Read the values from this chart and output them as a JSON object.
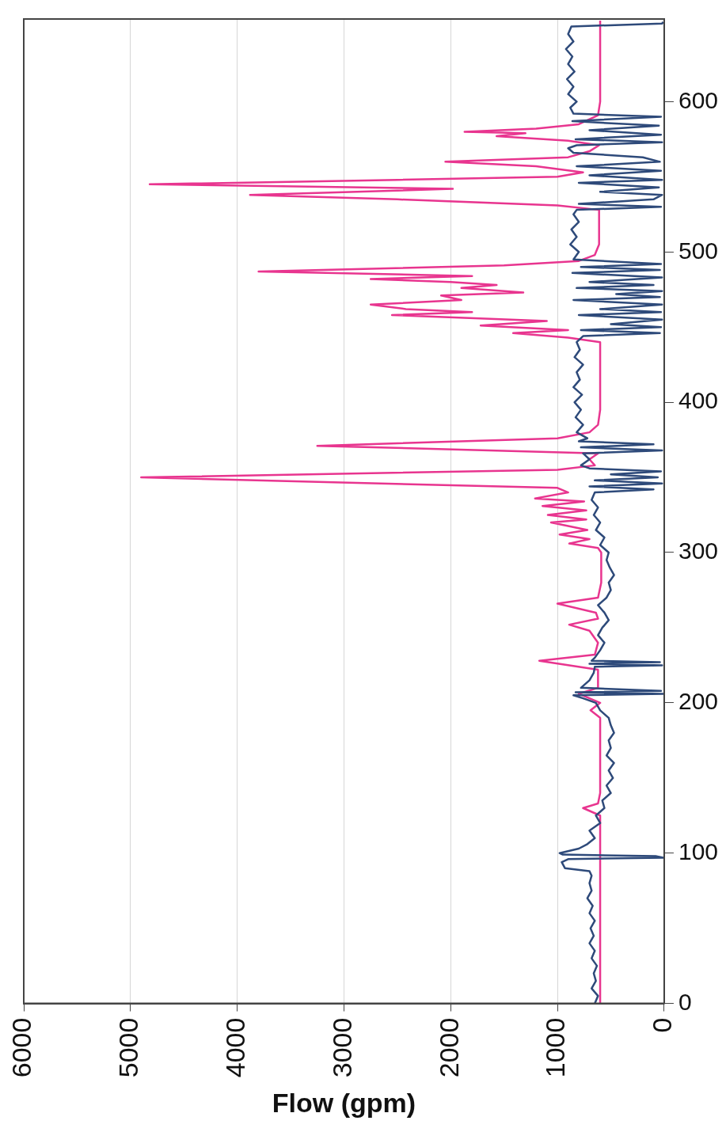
{
  "chart_data": {
    "type": "line",
    "xlabel": "Flow (gpm)",
    "xlim": [
      6000,
      0
    ],
    "xticks": [
      6000,
      5000,
      4000,
      3000,
      2000,
      1000,
      0
    ],
    "ylim": [
      0,
      655
    ],
    "yticks": [
      0,
      100,
      200,
      300,
      400,
      500,
      600
    ],
    "grid": "x",
    "series": [
      {
        "color": "#2e4a7a",
        "values": [
          0,
          5,
          10,
          15,
          20,
          25,
          30,
          35,
          40,
          45,
          50,
          55,
          60,
          65,
          70,
          75,
          80,
          85,
          88,
          90,
          94,
          96,
          97,
          98,
          99,
          100,
          103,
          106,
          110,
          115,
          120,
          125,
          130,
          135,
          140,
          145,
          150,
          155,
          160,
          165,
          170,
          175,
          180,
          185,
          190,
          195,
          200,
          203,
          205,
          206,
          207,
          208,
          210,
          215,
          220,
          224,
          225,
          226,
          227,
          228,
          230,
          235,
          240,
          245,
          250,
          255,
          260,
          265,
          270,
          275,
          280,
          285,
          290,
          295,
          300,
          305,
          310,
          315,
          320,
          325,
          330,
          335,
          340,
          342,
          344,
          346,
          348,
          350,
          352,
          354,
          356,
          358,
          362,
          366,
          368,
          370,
          372,
          374,
          376,
          380,
          385,
          390,
          395,
          400,
          405,
          410,
          415,
          420,
          425,
          430,
          435,
          440,
          444,
          446,
          448,
          450,
          452,
          455,
          458,
          460,
          462,
          465,
          468,
          470,
          472,
          474,
          476,
          478,
          480,
          483,
          486,
          488,
          490,
          492,
          495,
          500,
          505,
          510,
          515,
          520,
          525,
          528,
          530,
          532,
          535,
          538,
          540,
          543,
          546,
          548,
          551,
          554,
          557,
          560,
          563,
          566,
          569,
          571,
          573,
          575,
          578,
          581,
          584,
          587,
          590,
          592,
          596,
          600,
          605,
          610,
          615,
          620,
          625,
          630,
          635,
          640,
          645,
          650,
          652,
          653
        ],
        "x": [
          650,
          620,
          680,
          640,
          660,
          630,
          680,
          650,
          700,
          660,
          690,
          650,
          700,
          670,
          720,
          680,
          700,
          680,
          700,
          930,
          960,
          900,
          10,
          80,
          950,
          980,
          800,
          720,
          650,
          700,
          600,
          640,
          560,
          580,
          500,
          540,
          480,
          520,
          470,
          540,
          500,
          520,
          470,
          500,
          520,
          600,
          640,
          760,
          850,
          10,
          830,
          30,
          780,
          700,
          660,
          650,
          20,
          700,
          40,
          680,
          650,
          600,
          560,
          620,
          580,
          520,
          560,
          620,
          540,
          500,
          520,
          470,
          510,
          540,
          520,
          600,
          560,
          640,
          600,
          660,
          620,
          680,
          650,
          100,
          700,
          20,
          650,
          60,
          500,
          30,
          700,
          780,
          700,
          760,
          20,
          780,
          100,
          800,
          720,
          820,
          760,
          830,
          780,
          840,
          770,
          850,
          790,
          820,
          760,
          840,
          790,
          820,
          760,
          40,
          780,
          30,
          500,
          20,
          800,
          30,
          600,
          20,
          850,
          40,
          450,
          20,
          820,
          100,
          700,
          20,
          860,
          40,
          780,
          30,
          850,
          800,
          880,
          820,
          870,
          800,
          850,
          820,
          30,
          800,
          100,
          20,
          600,
          50,
          800,
          20,
          700,
          30,
          820,
          40,
          200,
          850,
          900,
          820,
          20,
          830,
          30,
          700,
          50,
          860,
          30,
          850,
          880,
          820,
          900,
          850,
          910,
          840,
          900,
          860,
          920,
          850,
          900,
          870,
          20,
          10
        ]
      },
      {
        "color": "#e8358f",
        "values": [
          0,
          125,
          130,
          133,
          140,
          190,
          195,
          200,
          206,
          210,
          222,
          228,
          232,
          240,
          248,
          252,
          256,
          260,
          266,
          270,
          280,
          300,
          303,
          306,
          309,
          312,
          315,
          320,
          322,
          325,
          328,
          331,
          334,
          336,
          340,
          343,
          350,
          355,
          358,
          362,
          366,
          371,
          376,
          380,
          385,
          395,
          440,
          443,
          446,
          448,
          451,
          454,
          458,
          460,
          462,
          465,
          468,
          471,
          473,
          476,
          478,
          480,
          482,
          484,
          487,
          491,
          494,
          498,
          505,
          528,
          531,
          535,
          538,
          542,
          545,
          548,
          550,
          553,
          557,
          560,
          563,
          567,
          571,
          574,
          577,
          579,
          580,
          582,
          585,
          591,
          600,
          654
        ],
        "x": [
          600,
          600,
          760,
          620,
          600,
          600,
          690,
          600,
          800,
          620,
          620,
          1170,
          650,
          620,
          700,
          890,
          620,
          640,
          1000,
          620,
          590,
          590,
          620,
          890,
          700,
          980,
          720,
          1060,
          730,
          1090,
          730,
          1140,
          750,
          1210,
          900,
          1000,
          4900,
          1000,
          650,
          700,
          620,
          3250,
          1000,
          700,
          620,
          600,
          600,
          900,
          1415,
          900,
          1720,
          1100,
          2550,
          1800,
          2420,
          2750,
          1900,
          2090,
          1320,
          1900,
          1570,
          2000,
          2750,
          1800,
          3800,
          1500,
          800,
          650,
          610,
          610,
          1000,
          2500,
          3880,
          1980,
          4820,
          2500,
          1000,
          760,
          1200,
          2050,
          900,
          700,
          610,
          900,
          1570,
          1300,
          1870,
          1200,
          800,
          620,
          600,
          600
        ]
      }
    ]
  }
}
